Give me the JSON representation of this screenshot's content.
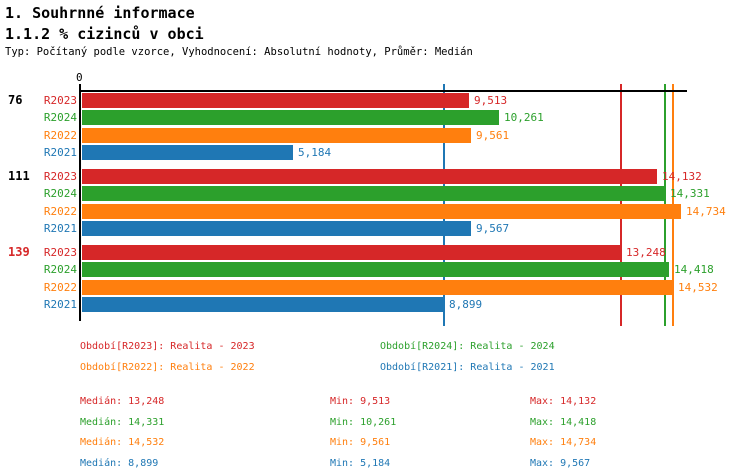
{
  "header": {
    "title1": "1. Souhrnné informace",
    "title2": "1.1.2 % cizinců v obci",
    "subtitle": "Typ: Počítaný podle vzorce, Vyhodnocení: Absolutní hodnoty, Průměr: Medián"
  },
  "colors": {
    "R2023": "#d62728",
    "R2024": "#2ca02c",
    "R2022": "#ff7f0e",
    "R2021": "#1f77b4",
    "axis": "#000000",
    "group_label_default": "#000000",
    "group_label_highlight": "#d62728"
  },
  "chart_data": {
    "type": "bar",
    "orientation": "horizontal",
    "title": "1.1.2 % cizinců v obci",
    "x_axis": {
      "zero_label": "0",
      "min": 0,
      "max": 14900,
      "grid": false
    },
    "series_order": [
      "R2023",
      "R2024",
      "R2022",
      "R2021"
    ],
    "groups": [
      {
        "label": "76",
        "highlighted": false,
        "bars": [
          {
            "series": "R2023",
            "value": 9513,
            "display": "9,513"
          },
          {
            "series": "R2024",
            "value": 10261,
            "display": "10,261"
          },
          {
            "series": "R2022",
            "value": 9561,
            "display": "9,561"
          },
          {
            "series": "R2021",
            "value": 5184,
            "display": "5,184"
          }
        ]
      },
      {
        "label": "111",
        "highlighted": false,
        "bars": [
          {
            "series": "R2023",
            "value": 14132,
            "display": "14,132"
          },
          {
            "series": "R2024",
            "value": 14331,
            "display": "14,331"
          },
          {
            "series": "R2022",
            "value": 14734,
            "display": "14,734"
          },
          {
            "series": "R2021",
            "value": 9567,
            "display": "9,567"
          }
        ]
      },
      {
        "label": "139",
        "highlighted": true,
        "bars": [
          {
            "series": "R2023",
            "value": 13248,
            "display": "13,248"
          },
          {
            "series": "R2024",
            "value": 14418,
            "display": "14,418"
          },
          {
            "series": "R2022",
            "value": 14532,
            "display": "14,532"
          },
          {
            "series": "R2021",
            "value": 8899,
            "display": "8,899"
          }
        ]
      }
    ],
    "median_lines": [
      {
        "series": "R2021",
        "value": 8899
      },
      {
        "series": "R2023",
        "value": 13248
      },
      {
        "series": "R2024",
        "value": 14331
      },
      {
        "series": "R2022",
        "value": 14532
      }
    ]
  },
  "legend": {
    "entries": [
      {
        "series": "R2023",
        "text": "Období[R2023]: Realita - 2023"
      },
      {
        "series": "R2024",
        "text": "Období[R2024]: Realita - 2024"
      },
      {
        "series": "R2022",
        "text": "Období[R2022]: Realita - 2022"
      },
      {
        "series": "R2021",
        "text": "Období[R2021]: Realita - 2021"
      }
    ]
  },
  "stats": {
    "rows": [
      {
        "series": "R2023",
        "median": "Medián: 13,248",
        "min": "Min: 9,513",
        "max": "Max: 14,132"
      },
      {
        "series": "R2024",
        "median": "Medián: 14,331",
        "min": "Min: 10,261",
        "max": "Max: 14,418"
      },
      {
        "series": "R2022",
        "median": "Medián: 14,532",
        "min": "Min: 9,561",
        "max": "Max: 14,734"
      },
      {
        "series": "R2021",
        "median": "Medián: 8,899",
        "min": "Min: 5,184",
        "max": "Max: 9,567"
      }
    ]
  }
}
